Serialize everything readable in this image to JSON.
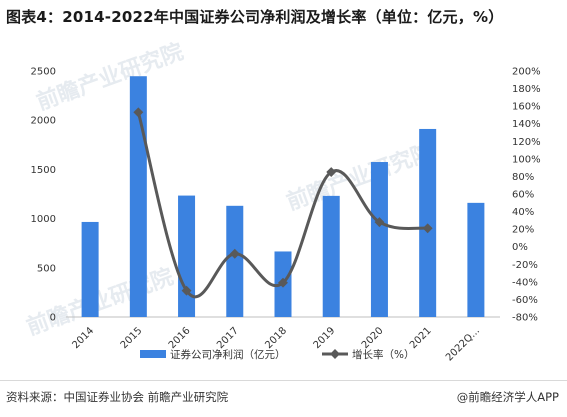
{
  "title": "图表4：2014-2022年中国证券公司净利润及增长率（单位：亿元，%）",
  "footer": {
    "source": "资料来源：中国证券业协会 前瞻产业研究院",
    "credit": "@前瞻经济学人APP"
  },
  "watermark": "前瞻产业研究院",
  "colors": {
    "bar": "#3b82e0",
    "line": "#595959"
  },
  "chart_data": {
    "type": "bar",
    "categories": [
      "2014",
      "2015",
      "2016",
      "2017",
      "2018",
      "2019",
      "2020",
      "2021",
      "2022Q..."
    ],
    "series": [
      {
        "name": "证券公司净利润（亿元）",
        "type": "bar",
        "axis": "left",
        "values": [
          966,
          2447,
          1234,
          1130,
          666,
          1231,
          1575,
          1911,
          1160
        ]
      },
      {
        "name": "增长率（%）",
        "type": "line",
        "axis": "right",
        "values": [
          null,
          153,
          -50,
          -8,
          -41,
          85,
          28,
          21,
          null
        ]
      }
    ],
    "ylim_left": [
      0,
      2500
    ],
    "yticks_left": [
      "0",
      "500",
      "1000",
      "1500",
      "2000",
      "2500"
    ],
    "ylim_right": [
      -80,
      200
    ],
    "yticks_right": [
      "-80%",
      "-60%",
      "-40%",
      "-20%",
      "0%",
      "20%",
      "40%",
      "60%",
      "80%",
      "100%",
      "120%",
      "140%",
      "160%",
      "180%",
      "200%"
    ],
    "legend_position": "bottom-center"
  }
}
